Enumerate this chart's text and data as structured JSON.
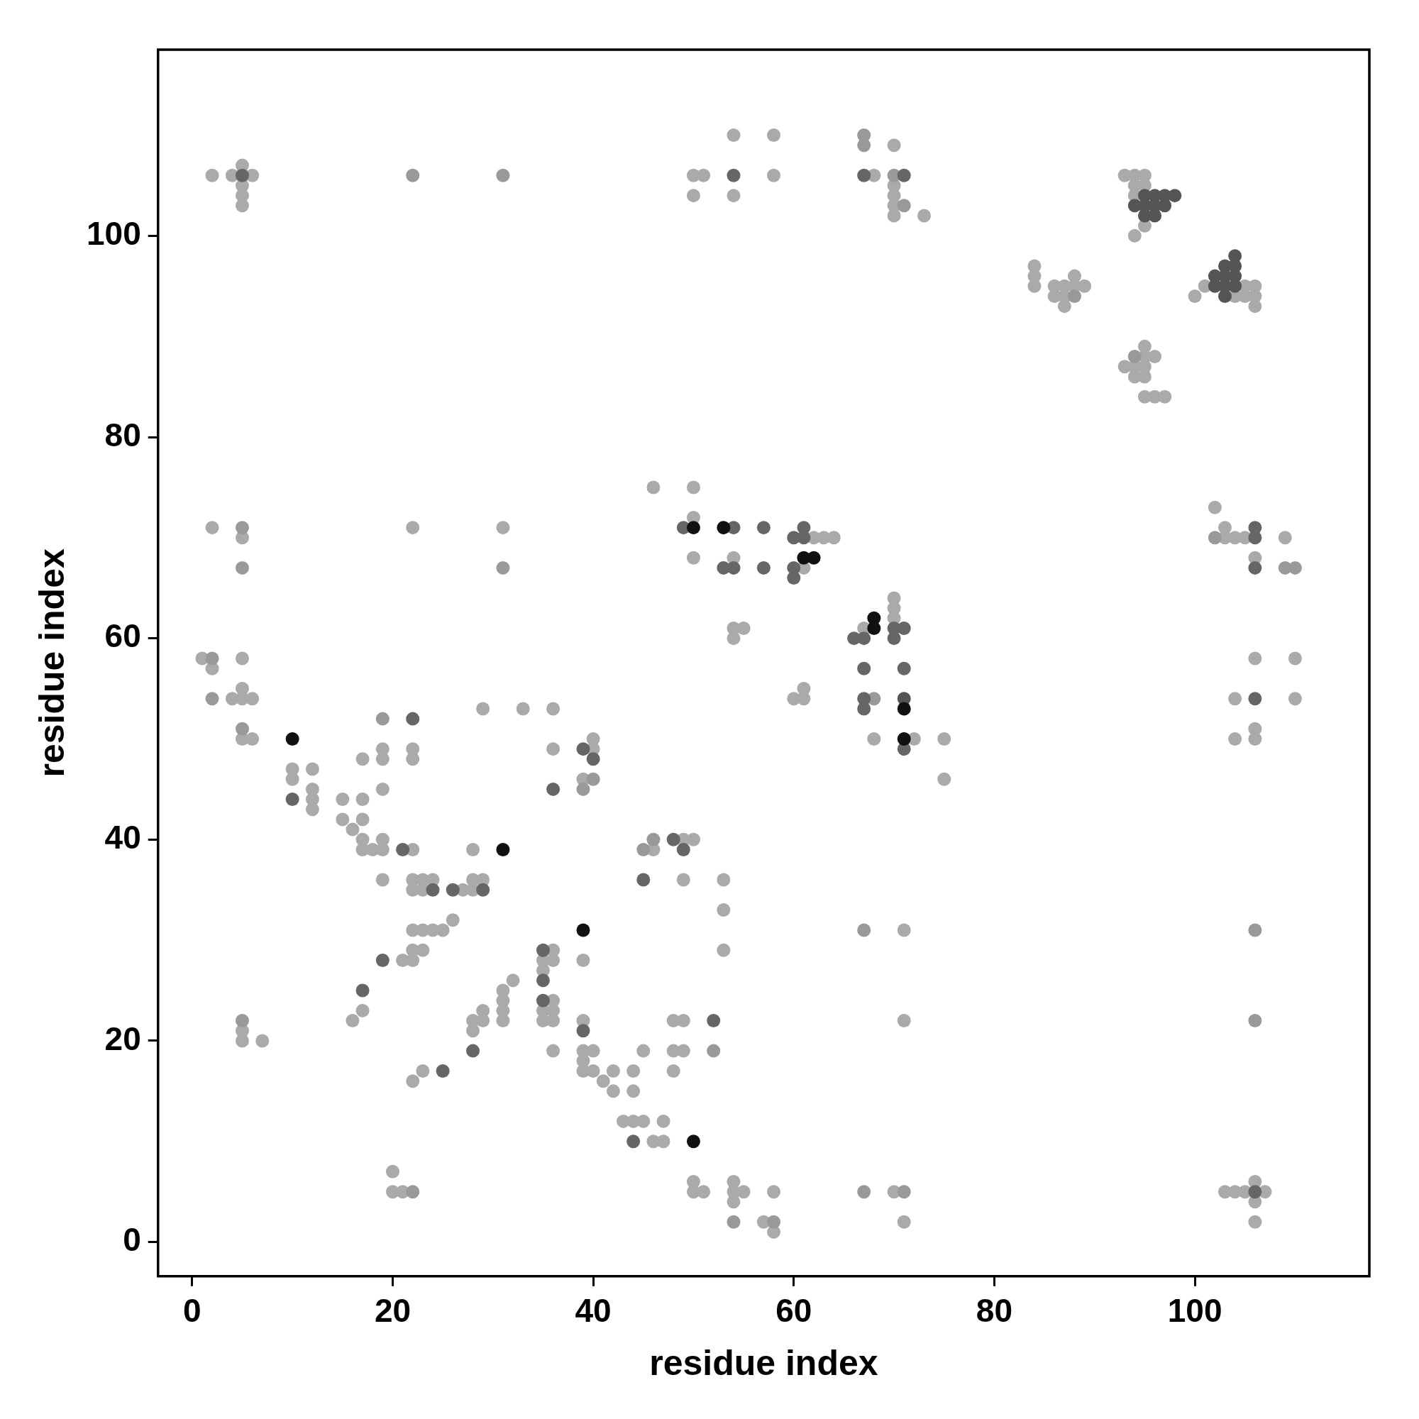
{
  "chart_data": {
    "type": "scatter",
    "xlabel": "residue index",
    "ylabel": "residue index",
    "xlim": [
      -3.4,
      117.4
    ],
    "ylim": [
      -3.4,
      118.5
    ],
    "xticks": [
      0,
      20,
      40,
      60,
      80,
      100
    ],
    "yticks": [
      0,
      20,
      40,
      60,
      80,
      100
    ],
    "marker": "circle",
    "series": [
      {
        "color": "#aaaaaa",
        "x": [
          2,
          4,
          6,
          5,
          5,
          5,
          5,
          50,
          51,
          50,
          54,
          54,
          58,
          58,
          68,
          70,
          70,
          70,
          70,
          70,
          73,
          93,
          94,
          95,
          94,
          95,
          94,
          95,
          94,
          84,
          84,
          84,
          88,
          86,
          87,
          88,
          89,
          86,
          87,
          87,
          101,
          105,
          106,
          100,
          104,
          105,
          106,
          106,
          95,
          95,
          96,
          93,
          94,
          95,
          94,
          95,
          95,
          96,
          97,
          102,
          103,
          103,
          104,
          105,
          109,
          106,
          106,
          110,
          104,
          110,
          106,
          106,
          104,
          103,
          104,
          105,
          107,
          106,
          106,
          106,
          2,
          5,
          22,
          31,
          1,
          2,
          5,
          5,
          4,
          5,
          6,
          5,
          6,
          10,
          10,
          12,
          12,
          12,
          12,
          15,
          17,
          15,
          17,
          16,
          17,
          19,
          17,
          18,
          19,
          19,
          17,
          19,
          19,
          19,
          22,
          22,
          29,
          33,
          36,
          36,
          40,
          40,
          39,
          22,
          28,
          22,
          23,
          24,
          28,
          29,
          22,
          23,
          27,
          28,
          46,
          49,
          50,
          49,
          53,
          53,
          53,
          26,
          22,
          23,
          24,
          25,
          71,
          22,
          23,
          36,
          21,
          22,
          35,
          36,
          39,
          35,
          32,
          31,
          31,
          36,
          17,
          29,
          31,
          35,
          36,
          16,
          28,
          29,
          31,
          35,
          36,
          39,
          48,
          49,
          71,
          5,
          28,
          5,
          7,
          36,
          39,
          40,
          45,
          48,
          49,
          39,
          23,
          39,
          40,
          42,
          44,
          48,
          22,
          41,
          42,
          44,
          43,
          44,
          45,
          47,
          46,
          47,
          20,
          20,
          21,
          50,
          50,
          51,
          54,
          54,
          55,
          54,
          57,
          58,
          58,
          70,
          71,
          46,
          50,
          50,
          62,
          63,
          64,
          50,
          54,
          61,
          54,
          55,
          54,
          61,
          60,
          61,
          70,
          70,
          70,
          67,
          68,
          72,
          75,
          75
        ],
        "values": [
          106,
          106,
          106,
          107,
          105,
          104,
          103,
          106,
          106,
          104,
          104,
          110,
          110,
          106,
          106,
          109,
          105,
          104,
          103,
          102,
          102,
          106,
          106,
          106,
          105,
          105,
          104,
          101,
          100,
          97,
          96,
          95,
          96,
          95,
          95,
          95,
          95,
          94,
          94,
          93,
          95,
          95,
          95,
          94,
          94,
          94,
          94,
          93,
          89,
          88,
          88,
          87,
          87,
          87,
          86,
          86,
          84,
          84,
          84,
          73,
          71,
          70,
          70,
          70,
          70,
          68,
          58,
          58,
          54,
          54,
          51,
          50,
          50,
          5,
          5,
          5,
          5,
          6,
          4,
          2,
          71,
          70,
          71,
          71,
          58,
          57,
          58,
          55,
          54,
          54,
          54,
          50,
          50,
          47,
          46,
          47,
          45,
          44,
          43,
          44,
          44,
          42,
          42,
          41,
          40,
          40,
          39,
          39,
          39,
          36,
          48,
          49,
          48,
          45,
          49,
          48,
          53,
          53,
          53,
          49,
          50,
          49,
          46,
          39,
          39,
          36,
          36,
          36,
          36,
          36,
          35,
          35,
          35,
          35,
          39,
          40,
          40,
          36,
          36,
          33,
          29,
          32,
          31,
          31,
          31,
          31,
          31,
          29,
          29,
          29,
          28,
          28,
          28,
          28,
          28,
          27,
          26,
          25,
          24,
          24,
          23,
          23,
          23,
          23,
          23,
          22,
          22,
          22,
          22,
          22,
          22,
          22,
          22,
          22,
          22,
          21,
          21,
          20,
          20,
          19,
          19,
          19,
          19,
          19,
          19,
          18,
          17,
          17,
          17,
          17,
          17,
          17,
          16,
          16,
          15,
          15,
          12,
          12,
          12,
          12,
          10,
          10,
          7,
          5,
          5,
          6,
          5,
          5,
          6,
          5,
          5,
          4,
          2,
          1,
          5,
          5,
          2,
          75,
          75,
          72,
          70,
          70,
          70,
          68,
          68,
          67,
          61,
          61,
          60,
          55,
          54,
          54,
          64,
          63,
          62,
          61,
          50,
          50,
          50,
          46
        ]
      },
      {
        "color": "#999999",
        "x": [
          22,
          31,
          67,
          67,
          70,
          71,
          88,
          94,
          102,
          109,
          110,
          106,
          106,
          5,
          5,
          31,
          2,
          2,
          5,
          19,
          40,
          39,
          45,
          46,
          67,
          5,
          52,
          22,
          54,
          58,
          67,
          71,
          68
        ],
        "values": [
          106,
          106,
          110,
          109,
          106,
          103,
          94,
          88,
          70,
          67,
          67,
          31,
          22,
          71,
          67,
          67,
          58,
          54,
          51,
          52,
          46,
          45,
          39,
          40,
          31,
          22,
          19,
          5,
          2,
          2,
          5,
          5,
          54
        ]
      },
      {
        "color": "#666666",
        "x": [
          5,
          54,
          67,
          71,
          106,
          106,
          106,
          106,
          106,
          10,
          22,
          36,
          39,
          40,
          21,
          24,
          26,
          29,
          49,
          48,
          45,
          35,
          19,
          35,
          17,
          35,
          52,
          39,
          28,
          25,
          44,
          49,
          54,
          57,
          61,
          60,
          61,
          53,
          54,
          57,
          60,
          60,
          70,
          71,
          66,
          67,
          70,
          67,
          71,
          67,
          67,
          71
        ],
        "values": [
          106,
          106,
          106,
          106,
          71,
          70,
          67,
          54,
          5,
          44,
          52,
          45,
          49,
          48,
          39,
          35,
          35,
          35,
          39,
          40,
          36,
          29,
          28,
          26,
          25,
          24,
          22,
          21,
          19,
          17,
          10,
          71,
          71,
          71,
          71,
          70,
          70,
          67,
          67,
          67,
          67,
          66,
          61,
          61,
          60,
          60,
          60,
          57,
          57,
          54,
          53,
          49
        ]
      },
      {
        "color": "#555555",
        "x": [
          95,
          96,
          97,
          98,
          94,
          95,
          96,
          97,
          95,
          96,
          104,
          103,
          104,
          102,
          103,
          104,
          102,
          103,
          104,
          103,
          71
        ],
        "values": [
          104,
          104,
          104,
          104,
          103,
          103,
          103,
          103,
          102,
          102,
          98,
          97,
          97,
          96,
          96,
          96,
          95,
          95,
          95,
          94,
          54
        ]
      },
      {
        "color": "#111111",
        "x": [
          10,
          31,
          39,
          50,
          50,
          53,
          61,
          62,
          68,
          68,
          71,
          71
        ],
        "values": [
          50,
          39,
          31,
          10,
          71,
          71,
          68,
          68,
          62,
          61,
          53,
          50
        ]
      }
    ]
  }
}
